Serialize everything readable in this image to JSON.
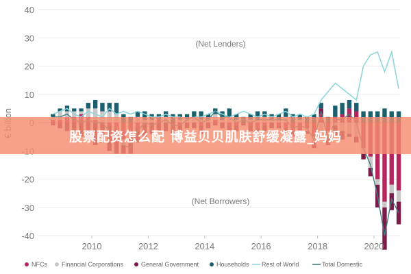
{
  "overlay_banner": {
    "text": "股票配资怎么配 博益贝贝肌肤舒缓凝露_妈妈"
  },
  "chart_data": {
    "type": "bar",
    "title": "",
    "xlabel": "",
    "ylabel": "€ billion",
    "ylim": [
      -40,
      40
    ],
    "yticks": [
      -40,
      -30,
      -20,
      -10,
      0,
      10,
      20,
      30,
      40
    ],
    "xticks": [
      "2010",
      "2012",
      "2014",
      "2016",
      "2018",
      "2020"
    ],
    "annotations": {
      "top": "(Net Lenders)",
      "bottom": "(Net Borrowers)"
    },
    "grid": true,
    "legend_position": "bottom",
    "colors": {
      "nfcs": "#b5265f",
      "financial": "#c8c8c8",
      "government": "#7a1b4a",
      "households": "#1b5f6e",
      "rest_of_world": "#8fd6dc",
      "total_domestic": "#3f7f7f"
    },
    "legend": [
      {
        "key": "nfcs",
        "label": "NFCs",
        "kind": "dot"
      },
      {
        "key": "financial",
        "label": "Financial Corporations",
        "kind": "dot"
      },
      {
        "key": "government",
        "label": "General Government",
        "kind": "dot"
      },
      {
        "key": "households",
        "label": "Households",
        "kind": "dot"
      },
      {
        "key": "rest_of_world",
        "label": "Rest of World",
        "kind": "line"
      },
      {
        "key": "total_domestic",
        "label": "Total Domestic",
        "kind": "line"
      }
    ],
    "x": [
      "2008Q3",
      "2008Q4",
      "2009Q1",
      "2009Q2",
      "2009Q3",
      "2009Q4",
      "2010Q1",
      "2010Q2",
      "2010Q3",
      "2010Q4",
      "2011Q1",
      "2011Q2",
      "2011Q3",
      "2011Q4",
      "2012Q1",
      "2012Q2",
      "2012Q3",
      "2012Q4",
      "2013Q1",
      "2013Q2",
      "2013Q3",
      "2013Q4",
      "2014Q1",
      "2014Q2",
      "2014Q3",
      "2014Q4",
      "2015Q1",
      "2015Q2",
      "2015Q3",
      "2015Q4",
      "2016Q1",
      "2016Q2",
      "2016Q3",
      "2016Q4",
      "2017Q1",
      "2017Q2",
      "2017Q3",
      "2017Q4",
      "2018Q1",
      "2018Q2",
      "2018Q3",
      "2018Q4",
      "2019Q1",
      "2019Q2",
      "2019Q3",
      "2019Q4",
      "2020Q1",
      "2020Q2",
      "2020Q3",
      "2020Q4"
    ],
    "series": [
      {
        "key": "nfcs",
        "name": "NFCs",
        "values": [
          1,
          1,
          2,
          2,
          3,
          2,
          1,
          0,
          -1,
          -2,
          -6,
          -4,
          -2,
          -1,
          0,
          1,
          0,
          -1,
          -1,
          0,
          0,
          -1,
          0,
          1,
          0,
          -1,
          -1,
          0,
          -1,
          -2,
          -1,
          0,
          -1,
          -2,
          -3,
          -2,
          -2,
          -5,
          3,
          -3,
          2,
          3,
          5,
          4,
          -9,
          -12,
          -20,
          -28,
          -22,
          -24
        ]
      },
      {
        "key": "financial",
        "name": "Financial Corporations",
        "values": [
          1,
          3,
          2,
          2,
          1,
          3,
          4,
          4,
          4,
          3,
          -2,
          -1,
          2,
          1,
          1,
          0,
          2,
          0,
          1,
          1,
          2,
          1,
          1,
          2,
          1,
          2,
          1,
          0,
          1,
          1,
          2,
          1,
          1,
          2,
          0,
          1,
          -1,
          -2,
          -3,
          -2,
          -1,
          -3,
          -4,
          -5,
          -2,
          -4,
          -2,
          -2,
          -3,
          -4
        ]
      },
      {
        "key": "government",
        "name": "General Government",
        "values": [
          -1,
          -2,
          -3,
          -4,
          -5,
          -6,
          -8,
          -7,
          -9,
          -9,
          -3,
          -6,
          -5,
          -4,
          -4,
          -3,
          -3,
          -3,
          -3,
          -2,
          -2,
          -3,
          -2,
          -1,
          -2,
          -2,
          -2,
          -1,
          -2,
          -1,
          -2,
          -2,
          -1,
          -2,
          -2,
          -2,
          -1,
          -2,
          2,
          -3,
          -4,
          -3,
          -1,
          -2,
          -2,
          -3,
          -8,
          -15,
          -6,
          -8
        ]
      },
      {
        "key": "households",
        "name": "Households",
        "values": [
          1,
          1,
          2,
          1,
          1,
          2,
          3,
          3,
          3,
          4,
          3,
          2,
          2,
          3,
          2,
          2,
          2,
          3,
          2,
          2,
          2,
          3,
          2,
          2,
          3,
          3,
          2,
          2,
          2,
          3,
          2,
          2,
          2,
          3,
          3,
          2,
          2,
          3,
          2,
          2,
          4,
          4,
          3,
          3,
          4,
          4,
          4,
          5,
          4,
          4
        ]
      },
      {
        "key": "rest_of_world",
        "name": "Rest of World",
        "values": [
          3,
          4,
          5,
          3,
          2,
          4,
          3,
          2,
          5,
          3,
          4,
          3,
          4,
          3,
          2,
          2,
          3,
          2,
          2,
          1,
          2,
          2,
          3,
          4,
          3,
          2,
          3,
          4,
          3,
          2,
          3,
          2,
          3,
          4,
          2,
          3,
          2,
          3,
          8,
          11,
          14,
          12,
          10,
          8,
          20,
          24,
          25,
          18,
          25,
          12
        ]
      },
      {
        "key": "total_domestic",
        "name": "Total Domestic",
        "values": [
          2,
          2,
          3,
          1,
          0,
          1,
          0,
          0,
          -3,
          -4,
          -8,
          -9,
          -3,
          0,
          -1,
          0,
          1,
          -1,
          -1,
          1,
          2,
          0,
          1,
          4,
          2,
          2,
          0,
          1,
          0,
          1,
          1,
          1,
          1,
          1,
          -2,
          -1,
          -2,
          -6,
          4,
          -6,
          1,
          1,
          3,
          0,
          -9,
          -15,
          -26,
          -40,
          -27,
          -32
        ]
      }
    ]
  }
}
